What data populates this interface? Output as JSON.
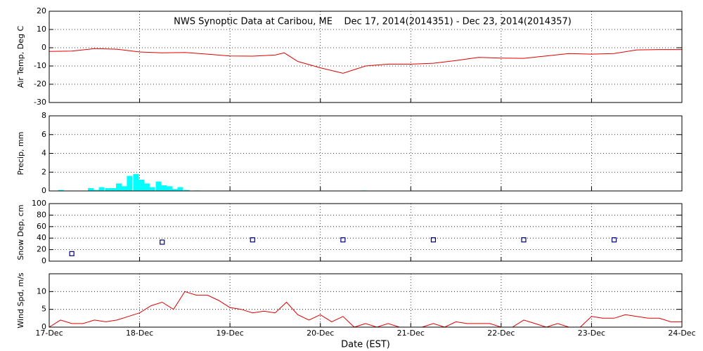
{
  "chart_data": [
    {
      "type": "line",
      "title": "NWS Synoptic Data at Caribou, ME    Dec 17, 2014(2014351) - Dec 23, 2014(2014357)",
      "ylabel": "Air Temp, Deg C",
      "color": "#e00000",
      "grid": true,
      "xlim": [
        0,
        7
      ],
      "xticks": [
        0,
        1,
        2,
        3,
        4,
        5,
        6,
        7
      ],
      "ylim": [
        -30,
        20
      ],
      "yticks": [
        -30,
        -20,
        -10,
        0,
        10,
        20
      ],
      "x": [
        0,
        0.25,
        0.5,
        0.75,
        1,
        1.25,
        1.5,
        1.75,
        2,
        2.25,
        2.5,
        2.6,
        2.75,
        3,
        3.25,
        3.5,
        3.75,
        4,
        4.25,
        4.5,
        4.75,
        5,
        5.25,
        5.5,
        5.75,
        6,
        6.25,
        6.5,
        6.75,
        7
      ],
      "values": [
        -2,
        -1.8,
        -0.5,
        -0.8,
        -2.3,
        -2.8,
        -2.6,
        -3.5,
        -4.5,
        -4.6,
        -4,
        -2.8,
        -7.5,
        -11,
        -14,
        -10,
        -9,
        -9,
        -8.5,
        -7,
        -5.3,
        -5.7,
        -5.8,
        -4.5,
        -3.2,
        -3.5,
        -3.2,
        -1.2,
        -1,
        -1
      ]
    },
    {
      "type": "bar",
      "ylabel": "Precip, mm",
      "color": "#00ffff",
      "grid": true,
      "xlim": [
        0,
        7
      ],
      "xticks": [
        0,
        1,
        2,
        3,
        4,
        5,
        6,
        7
      ],
      "ylim": [
        0,
        8
      ],
      "yticks": [
        0,
        2,
        4,
        6,
        8
      ],
      "x": [
        0.13,
        0.46,
        0.52,
        0.58,
        0.65,
        0.71,
        0.77,
        0.83,
        0.89,
        0.96,
        1.02,
        1.08,
        1.14,
        1.21,
        1.27,
        1.33,
        1.39,
        1.45,
        1.52,
        1.64,
        3.48
      ],
      "values": [
        0.1,
        0.3,
        0.1,
        0.4,
        0.3,
        0.3,
        0.8,
        0.5,
        1.6,
        1.8,
        1.2,
        0.8,
        0.4,
        1.0,
        0.6,
        0.5,
        0.2,
        0.4,
        0.1,
        0.05,
        0.05
      ]
    },
    {
      "type": "scatter",
      "ylabel": "Snow Dep, cm",
      "color": "#000080",
      "grid": true,
      "xlim": [
        0,
        7
      ],
      "xticks": [
        0,
        1,
        2,
        3,
        4,
        5,
        6,
        7
      ],
      "ylim": [
        0,
        100
      ],
      "yticks": [
        0,
        20,
        40,
        60,
        80,
        100
      ],
      "x": [
        0.25,
        1.25,
        2.25,
        3.25,
        4.25,
        5.25,
        6.25
      ],
      "values": [
        13,
        33,
        37,
        37,
        37,
        37,
        37
      ]
    },
    {
      "type": "line",
      "ylabel": "Wind Spd, m/s",
      "xlabel": "Date (EST)",
      "color": "#e00000",
      "grid": true,
      "xlim": [
        0,
        7
      ],
      "xticks": [
        {
          "value": 0,
          "label": "17-Dec"
        },
        {
          "value": 1,
          "label": "18-Dec"
        },
        {
          "value": 2,
          "label": "19-Dec"
        },
        {
          "value": 3,
          "label": "20-Dec"
        },
        {
          "value": 4,
          "label": "21-Dec"
        },
        {
          "value": 5,
          "label": "22-Dec"
        },
        {
          "value": 6,
          "label": "23-Dec"
        },
        {
          "value": 7,
          "label": "24-Dec"
        }
      ],
      "ylim": [
        0,
        15
      ],
      "yticks": [
        0,
        5,
        10
      ],
      "x": [
        0,
        0.125,
        0.25,
        0.375,
        0.5,
        0.625,
        0.75,
        0.875,
        1,
        1.125,
        1.25,
        1.375,
        1.5,
        1.625,
        1.75,
        1.875,
        2,
        2.125,
        2.25,
        2.375,
        2.5,
        2.625,
        2.75,
        2.875,
        3,
        3.125,
        3.25,
        3.375,
        3.5,
        3.625,
        3.75,
        3.875,
        4,
        4.125,
        4.25,
        4.375,
        4.5,
        4.625,
        4.75,
        4.875,
        5,
        5.125,
        5.25,
        5.375,
        5.5,
        5.625,
        5.75,
        5.875,
        6,
        6.125,
        6.25,
        6.375,
        6.5,
        6.625,
        6.75,
        6.875,
        7
      ],
      "values": [
        0,
        2,
        1,
        1,
        2,
        1.5,
        2,
        3,
        4,
        6,
        7,
        5,
        10,
        9,
        9,
        7.5,
        5.5,
        5,
        4,
        4.5,
        4,
        7,
        3.5,
        2,
        3.5,
        1.5,
        3,
        0,
        1,
        0,
        1,
        0,
        0,
        0,
        1,
        0,
        1.5,
        1,
        1,
        1,
        0,
        0,
        2,
        1,
        0,
        1,
        0,
        0,
        3,
        2.5,
        2.5,
        3.5,
        3,
        2.5,
        2.5,
        1.5,
        1.5
      ]
    }
  ]
}
